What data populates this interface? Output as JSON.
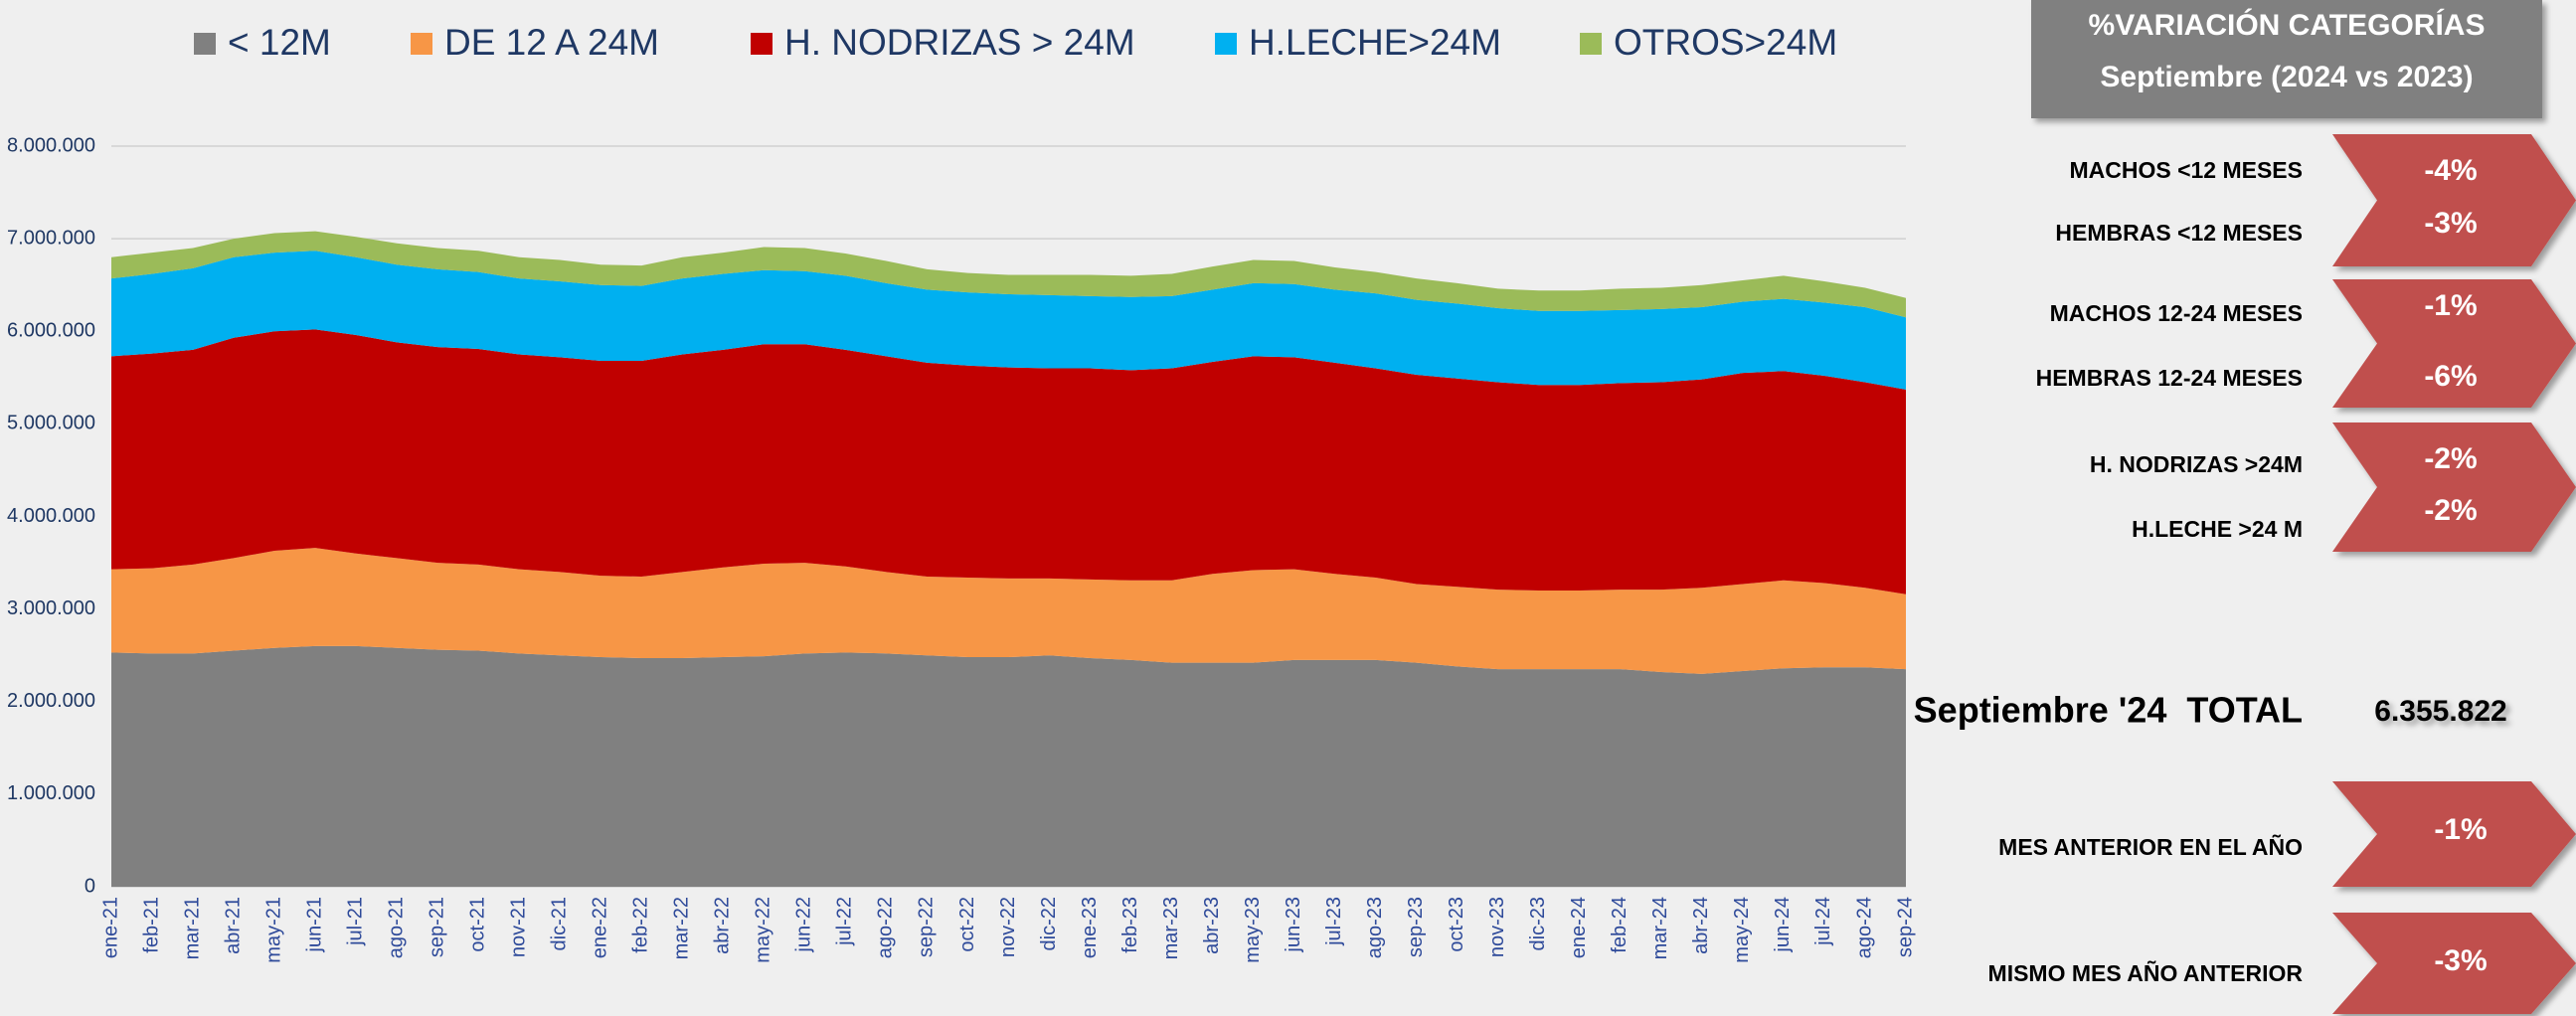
{
  "chart_data": {
    "type": "area",
    "stacked": true,
    "categories": [
      "ene-21",
      "feb-21",
      "mar-21",
      "abr-21",
      "may-21",
      "jun-21",
      "jul-21",
      "ago-21",
      "sep-21",
      "oct-21",
      "nov-21",
      "dic-21",
      "ene-22",
      "feb-22",
      "mar-22",
      "abr-22",
      "may-22",
      "jun-22",
      "jul-22",
      "ago-22",
      "sep-22",
      "oct-22",
      "nov-22",
      "dic-22",
      "ene-23",
      "feb-23",
      "mar-23",
      "abr-23",
      "may-23",
      "jun-23",
      "jul-23",
      "ago-23",
      "sep-23",
      "oct-23",
      "nov-23",
      "dic-23",
      "ene-24",
      "feb-24",
      "mar-24",
      "abr-24",
      "may-24",
      "jun-24",
      "jul-24",
      "ago-24",
      "sep-24"
    ],
    "series": [
      {
        "name": "< 12M",
        "color": "#808080",
        "values": [
          2530000,
          2520000,
          2520000,
          2550000,
          2580000,
          2600000,
          2600000,
          2580000,
          2560000,
          2550000,
          2520000,
          2500000,
          2480000,
          2470000,
          2470000,
          2480000,
          2490000,
          2520000,
          2530000,
          2520000,
          2500000,
          2480000,
          2480000,
          2500000,
          2470000,
          2450000,
          2420000,
          2420000,
          2420000,
          2450000,
          2450000,
          2450000,
          2420000,
          2380000,
          2350000,
          2350000,
          2350000,
          2350000,
          2320000,
          2300000,
          2330000,
          2360000,
          2370000,
          2370000,
          2350000
        ]
      },
      {
        "name": "DE 12 A 24M",
        "color": "#f79646",
        "values": [
          900000,
          920000,
          960000,
          1000000,
          1050000,
          1060000,
          1000000,
          970000,
          940000,
          930000,
          910000,
          900000,
          880000,
          880000,
          930000,
          970000,
          1000000,
          980000,
          930000,
          880000,
          850000,
          860000,
          850000,
          830000,
          850000,
          860000,
          890000,
          960000,
          1000000,
          980000,
          930000,
          890000,
          850000,
          860000,
          860000,
          850000,
          850000,
          860000,
          890000,
          930000,
          940000,
          950000,
          910000,
          860000,
          810000
        ]
      },
      {
        "name": "H. NODRIZAS > 24M",
        "color": "#c00000",
        "values": [
          2300000,
          2320000,
          2320000,
          2380000,
          2370000,
          2360000,
          2360000,
          2330000,
          2330000,
          2330000,
          2320000,
          2320000,
          2320000,
          2330000,
          2350000,
          2350000,
          2370000,
          2360000,
          2340000,
          2330000,
          2310000,
          2290000,
          2280000,
          2270000,
          2280000,
          2270000,
          2290000,
          2290000,
          2310000,
          2290000,
          2280000,
          2260000,
          2260000,
          2250000,
          2240000,
          2220000,
          2220000,
          2230000,
          2240000,
          2250000,
          2280000,
          2260000,
          2240000,
          2220000,
          2210000
        ]
      },
      {
        "name": "H.LECHE>24M",
        "color": "#00b0f0",
        "values": [
          840000,
          860000,
          880000,
          870000,
          850000,
          850000,
          840000,
          840000,
          840000,
          830000,
          820000,
          820000,
          820000,
          810000,
          820000,
          820000,
          800000,
          790000,
          800000,
          790000,
          790000,
          790000,
          790000,
          790000,
          780000,
          790000,
          780000,
          780000,
          790000,
          790000,
          790000,
          810000,
          810000,
          810000,
          800000,
          800000,
          800000,
          790000,
          790000,
          780000,
          770000,
          780000,
          790000,
          810000,
          780000
        ]
      },
      {
        "name": "OTROS>24M",
        "color": "#9bbb59",
        "values": [
          230000,
          230000,
          220000,
          200000,
          210000,
          210000,
          220000,
          230000,
          230000,
          230000,
          230000,
          230000,
          220000,
          220000,
          230000,
          230000,
          250000,
          250000,
          240000,
          240000,
          220000,
          210000,
          210000,
          220000,
          230000,
          230000,
          240000,
          250000,
          250000,
          250000,
          240000,
          230000,
          230000,
          220000,
          210000,
          220000,
          220000,
          230000,
          230000,
          240000,
          230000,
          250000,
          230000,
          210000,
          210000
        ]
      }
    ],
    "ylim": [
      0,
      8000000
    ],
    "yticks": [
      0,
      {
        "value": 1000000,
        "label": "1.000.000"
      },
      {
        "value": 2000000,
        "label": "2.000.000"
      },
      {
        "value": 3000000,
        "label": "3.000.000"
      },
      {
        "value": 4000000,
        "label": "4.000.000"
      },
      {
        "value": 5000000,
        "label": "5.000.000"
      },
      {
        "value": 6000000,
        "label": "6.000.000"
      },
      {
        "value": 7000000,
        "label": "7.000.000"
      },
      {
        "value": 8000000,
        "label": "8.000.000"
      }
    ],
    "grid": true,
    "legend": "top"
  },
  "panel": {
    "title": "%VARIACIÓN CATEGORÍAS",
    "subtitle": "Septiembre (2024 vs 2023)",
    "rows": [
      {
        "label": "MACHOS <12 MESES",
        "value": "-4%"
      },
      {
        "label": "HEMBRAS <12 MESES",
        "value": "-3%"
      },
      {
        "label": "MACHOS 12-24 MESES",
        "value": "-1%"
      },
      {
        "label": "HEMBRAS 12-24 MESES",
        "value": "-6%"
      },
      {
        "label": "H. NODRIZAS >24M",
        "value": "-2%"
      },
      {
        "label": "H.LECHE >24 M",
        "value": "-2%"
      }
    ],
    "total": {
      "label": "Septiembre '24  TOTAL",
      "value": "6.355.822"
    },
    "comparisons": [
      {
        "label": "MES ANTERIOR EN EL AÑO",
        "value": "-1%"
      },
      {
        "label": "MISMO MES AÑO ANTERIOR",
        "value": "-3%"
      }
    ]
  }
}
